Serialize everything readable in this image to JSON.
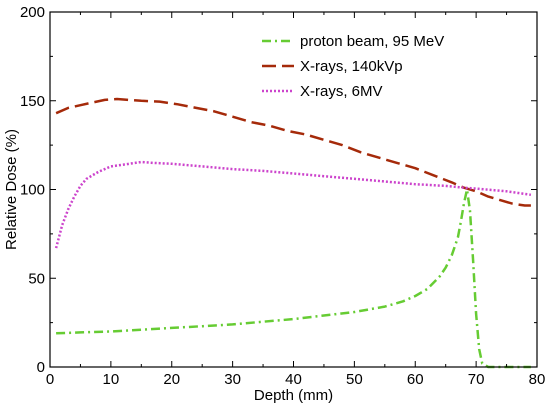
{
  "chart_data": {
    "type": "line",
    "title": "",
    "xlabel": "Depth (mm)",
    "ylabel": "Relative Dose (%)",
    "xlim": [
      0,
      80
    ],
    "ylim": [
      0,
      200
    ],
    "x_ticks": [
      0,
      10,
      20,
      30,
      40,
      50,
      60,
      70,
      80
    ],
    "y_ticks": [
      0,
      50,
      100,
      150,
      200
    ],
    "grid": false,
    "legend_position": "top-right",
    "series": [
      {
        "name": "proton beam, 95 MeV",
        "color": "#66cc33",
        "style": "dash-dot",
        "x": [
          1,
          5,
          10,
          15,
          20,
          25,
          30,
          35,
          40,
          45,
          50,
          55,
          58,
          60,
          62,
          64,
          65,
          66,
          67,
          67.5,
          68,
          68.5,
          69,
          69.5,
          70,
          70.5,
          71,
          72,
          74,
          76,
          78,
          79
        ],
        "y": [
          19,
          19.5,
          20,
          21,
          22,
          23,
          24,
          25.5,
          27,
          29,
          31,
          34,
          37,
          40,
          44,
          51,
          56,
          63,
          73,
          82,
          92,
          100,
          88,
          60,
          30,
          10,
          2,
          0,
          0,
          0,
          0,
          0
        ]
      },
      {
        "name": "X-rays, 140kVp",
        "color": "#a52a0a",
        "style": "dashed",
        "x": [
          1,
          3,
          5,
          7,
          9,
          11,
          13,
          15,
          18,
          21,
          24,
          27,
          30,
          33,
          36,
          39,
          42,
          45,
          48,
          51,
          54,
          57,
          60,
          63,
          66,
          68,
          70,
          72,
          74,
          76,
          78,
          79
        ],
        "y": [
          143,
          146,
          147.5,
          149,
          150.5,
          151,
          150.5,
          150,
          149.5,
          148,
          146,
          144,
          141,
          138,
          136,
          133,
          131,
          128,
          125,
          121,
          118,
          115,
          112,
          108,
          104,
          101,
          99,
          96,
          94,
          92,
          91,
          91
        ]
      },
      {
        "name": "X-rays, 6MV",
        "color": "#cc44cc",
        "style": "dotted",
        "x": [
          1,
          2,
          3,
          4,
          5,
          6,
          8,
          10,
          12,
          14,
          15,
          17,
          20,
          25,
          30,
          35,
          40,
          45,
          50,
          55,
          60,
          65,
          68,
          70,
          75,
          79
        ],
        "y": [
          67,
          80,
          89,
          96,
          102,
          106,
          110,
          113,
          114,
          115,
          115.5,
          115,
          114.5,
          113,
          111.5,
          110.5,
          109,
          107.5,
          106,
          104.5,
          103,
          102,
          101,
          100.5,
          99,
          97
        ]
      }
    ]
  }
}
